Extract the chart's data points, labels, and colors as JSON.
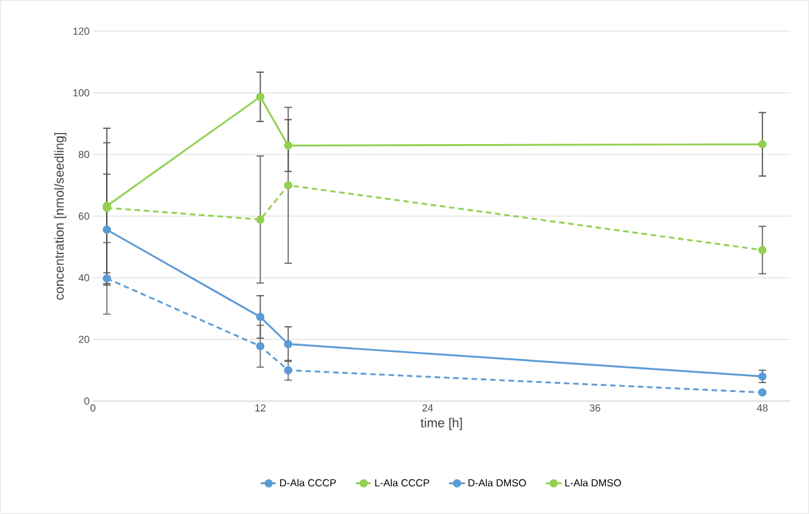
{
  "chart_data": {
    "type": "line",
    "xlabel": "time [h]",
    "ylabel": "concentration [nmol/seedling]",
    "xlim": [
      0,
      50
    ],
    "ylim": [
      0,
      120
    ],
    "xticks": [
      0,
      12,
      24,
      36,
      48
    ],
    "yticks": [
      0,
      20,
      40,
      60,
      80,
      100,
      120
    ],
    "grid": "y",
    "legend": "bottom",
    "marker": "circle",
    "x": [
      1,
      12,
      14,
      48
    ],
    "series": [
      {
        "name": "D-Ala CCCP",
        "color": "#5b9bd5",
        "line_style": "dashed",
        "values": [
          39.8,
          17.8,
          10.0,
          2.8
        ],
        "errors": [
          11.6,
          6.8,
          3.2,
          null
        ]
      },
      {
        "name": "L-Ala CCCP",
        "color": "#92d050",
        "line_style": "dashed",
        "values": [
          62.7,
          58.9,
          70.0,
          49.0
        ],
        "errors": [
          21.1,
          20.6,
          25.3,
          7.7
        ]
      },
      {
        "name": "D-Ala DMSO",
        "color": "#5b9bd5",
        "line_style": "solid",
        "values": [
          55.6,
          27.3,
          18.5,
          8.0
        ],
        "errors": [
          18.0,
          6.9,
          5.6,
          2.0
        ]
      },
      {
        "name": "L-Ala DMSO",
        "color": "#92d050",
        "line_style": "solid",
        "values": [
          63.3,
          98.7,
          82.9,
          83.3
        ],
        "errors": [
          25.2,
          8.0,
          8.4,
          10.3
        ]
      }
    ]
  }
}
